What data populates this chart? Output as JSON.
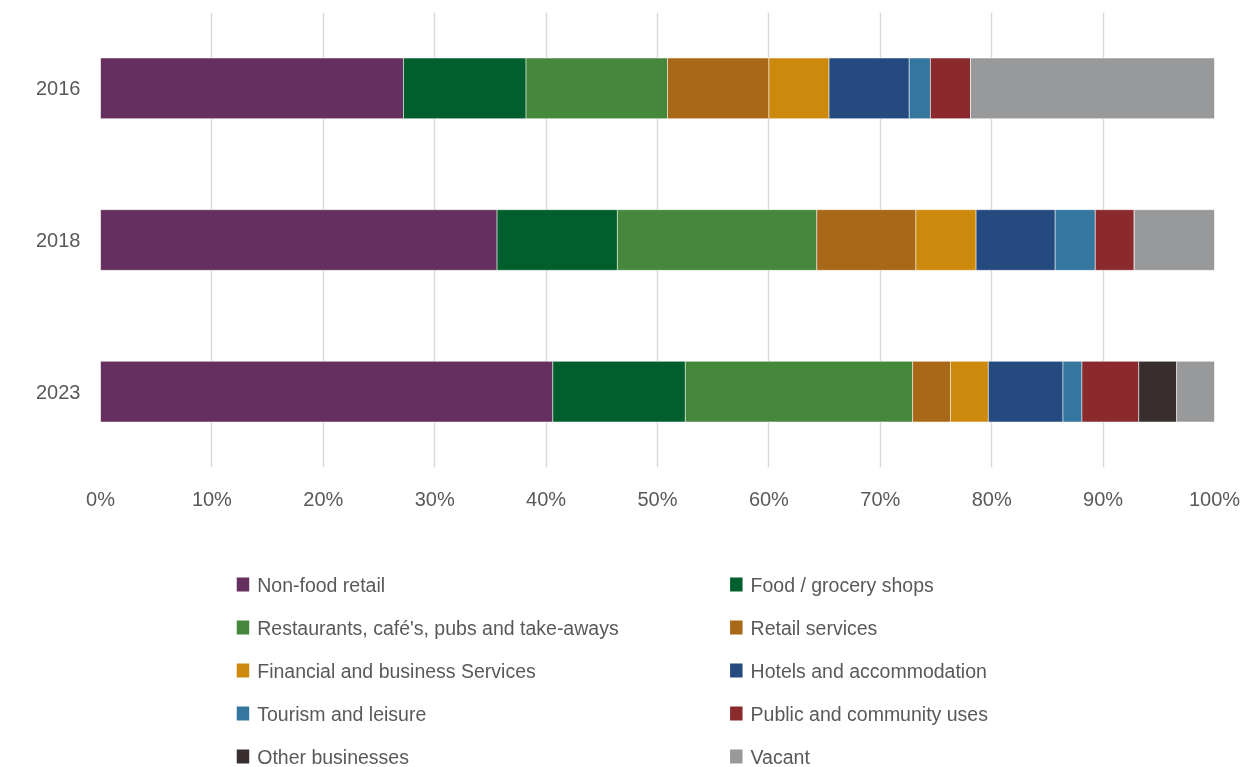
{
  "chart_data": {
    "type": "bar",
    "orientation": "horizontal",
    "stacked": true,
    "categories": [
      "2016",
      "2018",
      "2023"
    ],
    "series": [
      {
        "name": "Non-food retail",
        "color": "#65305f",
        "values": [
          27.2,
          35.6,
          40.6
        ]
      },
      {
        "name": "Food / grocery shops",
        "color": "#005f2d",
        "values": [
          11.0,
          10.8,
          11.9
        ]
      },
      {
        "name": "Restaurants, café's, pubs and take-aways",
        "color": "#45883c",
        "values": [
          12.7,
          17.9,
          20.4
        ]
      },
      {
        "name": "Retail services",
        "color": "#a86818",
        "values": [
          9.1,
          8.9,
          3.4
        ]
      },
      {
        "name": "Financial and business Services",
        "color": "#cd890b",
        "values": [
          5.4,
          5.4,
          3.4
        ]
      },
      {
        "name": "Hotels and accommodation",
        "color": "#244a80",
        "values": [
          7.2,
          7.1,
          6.7
        ]
      },
      {
        "name": "Tourism and leisure",
        "color": "#35769f",
        "values": [
          1.9,
          3.6,
          1.7
        ]
      },
      {
        "name": "Public and community uses",
        "color": "#8a2a2c",
        "values": [
          3.6,
          3.5,
          5.1
        ]
      },
      {
        "name": "Other businesses",
        "color": "#382e2d",
        "values": [
          0,
          0,
          3.4
        ]
      },
      {
        "name": "Vacant",
        "color": "#98999b",
        "values": [
          21.9,
          7.2,
          3.4
        ]
      }
    ],
    "xlim": [
      0,
      100
    ],
    "xticks": [
      {
        "value": 0,
        "label": "0%"
      },
      {
        "value": 10,
        "label": "10%"
      },
      {
        "value": 20,
        "label": "20%"
      },
      {
        "value": 30,
        "label": "30%"
      },
      {
        "value": 40,
        "label": "40%"
      },
      {
        "value": 50,
        "label": "50%"
      },
      {
        "value": 60,
        "label": "60%"
      },
      {
        "value": 70,
        "label": "70%"
      },
      {
        "value": 80,
        "label": "80%"
      },
      {
        "value": 90,
        "label": "90%"
      },
      {
        "value": 100,
        "label": "100%"
      }
    ],
    "grid": "x",
    "legend": "bottom"
  }
}
